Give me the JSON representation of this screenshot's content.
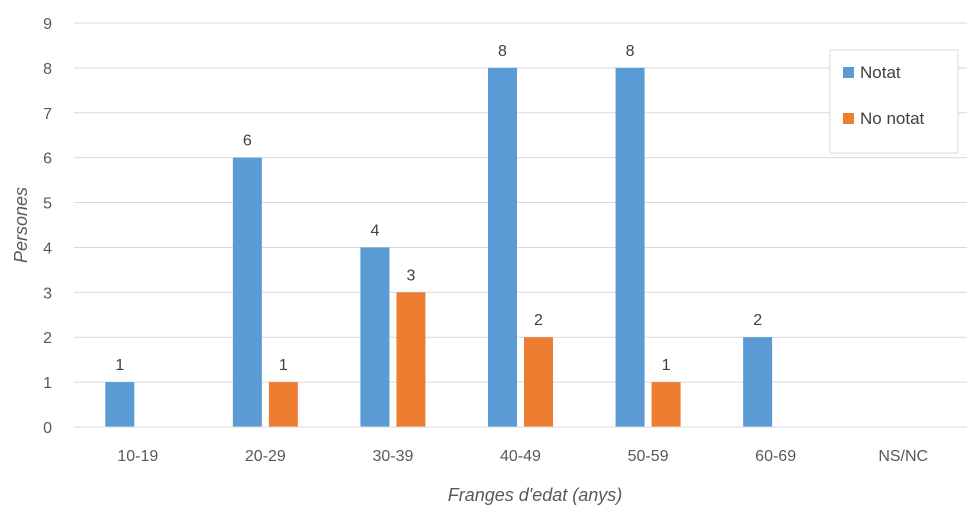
{
  "chart_data": {
    "type": "bar",
    "title": "",
    "xlabel": "Franges d'edat (anys)",
    "ylabel": "Persones",
    "categories": [
      "10-19",
      "20-29",
      "30-39",
      "40-49",
      "50-59",
      "60-69",
      "NS/NC"
    ],
    "series": [
      {
        "name": "Notat",
        "color": "#5B9BD5",
        "values": [
          1,
          6,
          4,
          8,
          8,
          2,
          null
        ]
      },
      {
        "name": "No notat",
        "color": "#ED7D31",
        "values": [
          null,
          1,
          3,
          2,
          1,
          null,
          null
        ]
      }
    ],
    "ylim": [
      0,
      9
    ],
    "yticks": [
      0,
      1,
      2,
      3,
      4,
      5,
      6,
      7,
      8,
      9
    ],
    "grid": true,
    "legend": "top-right"
  }
}
